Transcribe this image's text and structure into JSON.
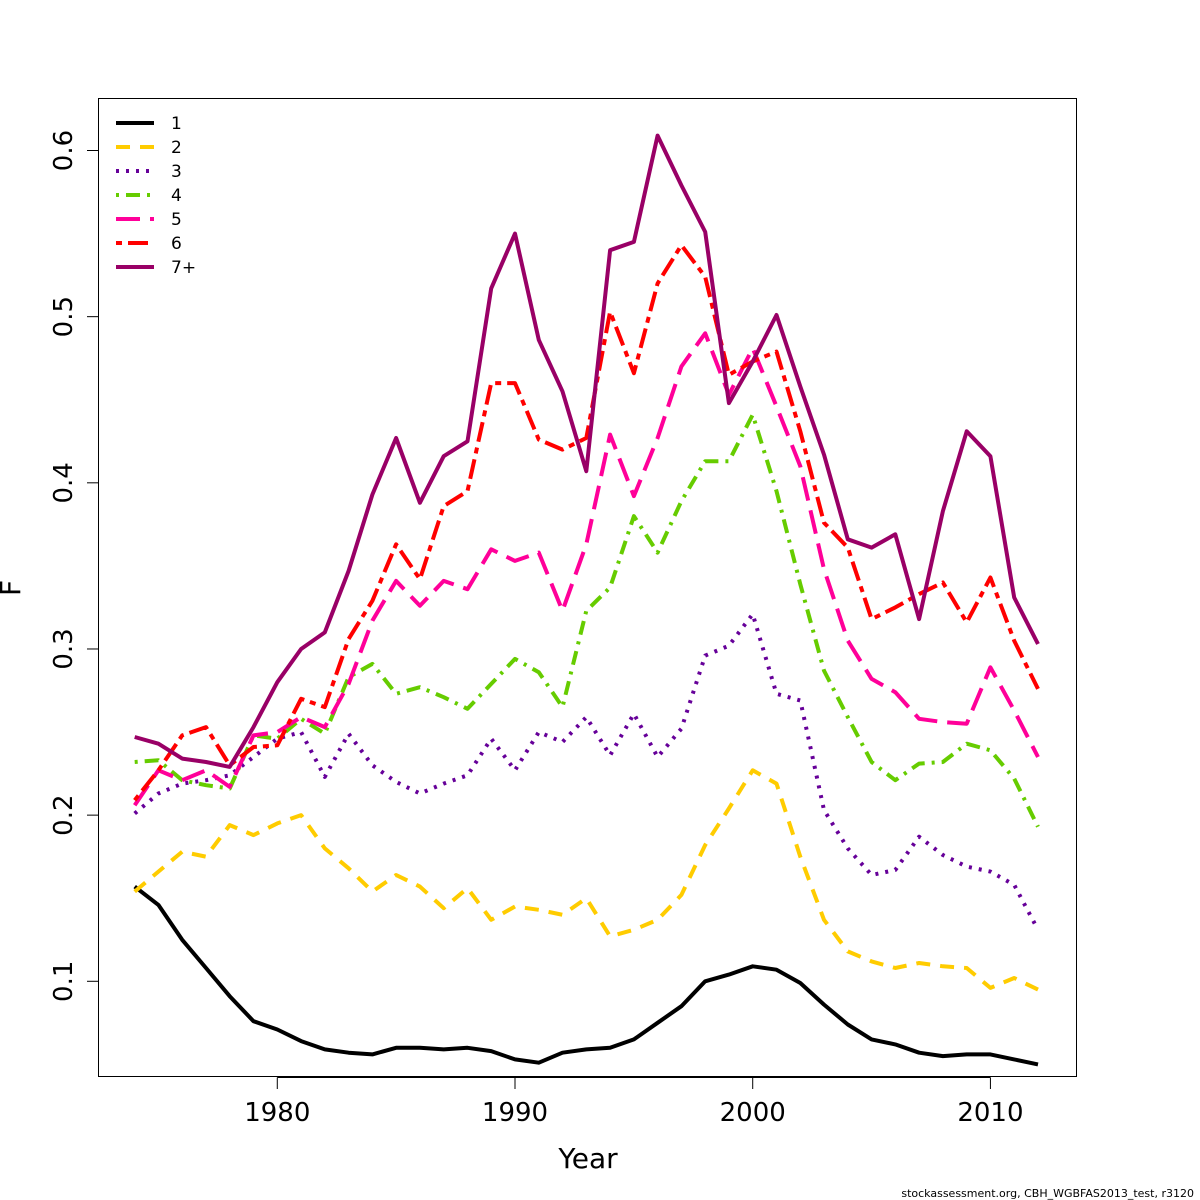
{
  "chart_data": {
    "type": "line",
    "xlabel": "Year",
    "ylabel": "F",
    "xlim": [
      1972.5,
      2013.6
    ],
    "ylim": [
      0.043,
      0.631
    ],
    "xticks": [
      1980,
      1990,
      2000,
      2010
    ],
    "yticks": [
      0.1,
      0.2,
      0.3,
      0.4,
      0.5,
      0.6
    ],
    "grid": false,
    "legend_position": "top-left",
    "x": [
      1974,
      1975,
      1976,
      1977,
      1978,
      1979,
      1980,
      1981,
      1982,
      1983,
      1984,
      1985,
      1986,
      1987,
      1988,
      1989,
      1990,
      1991,
      1992,
      1993,
      1994,
      1995,
      1996,
      1997,
      1998,
      1999,
      2000,
      2001,
      2002,
      2003,
      2004,
      2005,
      2006,
      2007,
      2008,
      2009,
      2010,
      2011,
      2012
    ],
    "series": [
      {
        "name": "1",
        "color": "#000000",
        "dash": "solid",
        "values": [
          0.157,
          0.146,
          0.125,
          0.108,
          0.091,
          0.076,
          0.071,
          0.064,
          0.059,
          0.057,
          0.056,
          0.06,
          0.06,
          0.059,
          0.06,
          0.058,
          0.053,
          0.051,
          0.057,
          0.059,
          0.06,
          0.065,
          0.075,
          0.085,
          0.1,
          0.104,
          0.109,
          0.107,
          0.099,
          0.086,
          0.074,
          0.065,
          0.062,
          0.057,
          0.055,
          0.056,
          0.056,
          0.053,
          0.05
        ]
      },
      {
        "name": "2",
        "color": "#ffcc00",
        "dash": "dashed",
        "values": [
          0.154,
          0.166,
          0.178,
          0.175,
          0.194,
          0.188,
          0.195,
          0.2,
          0.18,
          0.168,
          0.154,
          0.164,
          0.157,
          0.144,
          0.156,
          0.137,
          0.145,
          0.143,
          0.14,
          0.15,
          0.127,
          0.131,
          0.137,
          0.152,
          0.182,
          0.204,
          0.227,
          0.219,
          0.175,
          0.137,
          0.118,
          0.112,
          0.108,
          0.111,
          0.109,
          0.108,
          0.096,
          0.102,
          0.095
        ]
      },
      {
        "name": "3",
        "color": "#660099",
        "dash": "dotted",
        "values": [
          0.201,
          0.213,
          0.219,
          0.221,
          0.224,
          0.235,
          0.246,
          0.25,
          0.223,
          0.249,
          0.23,
          0.22,
          0.213,
          0.219,
          0.224,
          0.246,
          0.227,
          0.25,
          0.244,
          0.259,
          0.236,
          0.261,
          0.235,
          0.252,
          0.296,
          0.302,
          0.321,
          0.273,
          0.269,
          0.203,
          0.18,
          0.164,
          0.167,
          0.187,
          0.176,
          0.169,
          0.166,
          0.158,
          0.131
        ]
      },
      {
        "name": "4",
        "color": "#66cc00",
        "dash": "dotdash",
        "values": [
          0.232,
          0.233,
          0.221,
          0.218,
          0.216,
          0.248,
          0.246,
          0.258,
          0.249,
          0.283,
          0.291,
          0.273,
          0.277,
          0.271,
          0.264,
          0.279,
          0.294,
          0.286,
          0.265,
          0.323,
          0.337,
          0.38,
          0.358,
          0.389,
          0.413,
          0.413,
          0.441,
          0.395,
          0.339,
          0.287,
          0.259,
          0.232,
          0.221,
          0.231,
          0.232,
          0.243,
          0.239,
          0.222,
          0.193
        ]
      },
      {
        "name": "5",
        "color": "#ff0099",
        "dash": "longdash",
        "values": [
          0.206,
          0.227,
          0.221,
          0.227,
          0.217,
          0.248,
          0.25,
          0.259,
          0.253,
          0.279,
          0.317,
          0.341,
          0.326,
          0.341,
          0.336,
          0.36,
          0.353,
          0.358,
          0.323,
          0.363,
          0.429,
          0.392,
          0.427,
          0.47,
          0.49,
          0.453,
          0.481,
          0.446,
          0.41,
          0.348,
          0.305,
          0.282,
          0.274,
          0.258,
          0.256,
          0.255,
          0.289,
          0.263,
          0.235
        ]
      },
      {
        "name": "6",
        "color": "#ff0000",
        "dash": "twodash",
        "values": [
          0.209,
          0.227,
          0.248,
          0.253,
          0.23,
          0.241,
          0.242,
          0.27,
          0.265,
          0.306,
          0.329,
          0.363,
          0.342,
          0.386,
          0.395,
          0.46,
          0.46,
          0.426,
          0.42,
          0.427,
          0.503,
          0.466,
          0.52,
          0.543,
          0.524,
          0.465,
          0.473,
          0.479,
          0.431,
          0.376,
          0.361,
          0.318,
          0.325,
          0.333,
          0.34,
          0.316,
          0.343,
          0.305,
          0.276
        ]
      },
      {
        "name": "7+",
        "color": "#990066",
        "dash": "solid",
        "values": [
          0.247,
          0.243,
          0.234,
          0.232,
          0.229,
          0.253,
          0.28,
          0.3,
          0.31,
          0.347,
          0.393,
          0.427,
          0.388,
          0.416,
          0.425,
          0.517,
          0.55,
          0.486,
          0.455,
          0.407,
          0.54,
          0.545,
          0.609,
          0.579,
          0.551,
          0.448,
          0.473,
          0.501,
          0.458,
          0.417,
          0.366,
          0.361,
          0.369,
          0.318,
          0.383,
          0.431,
          0.416,
          0.331,
          0.303
        ]
      }
    ]
  },
  "caption": "stockassessment.org, CBH_WGBFAS2013_test, r3120"
}
